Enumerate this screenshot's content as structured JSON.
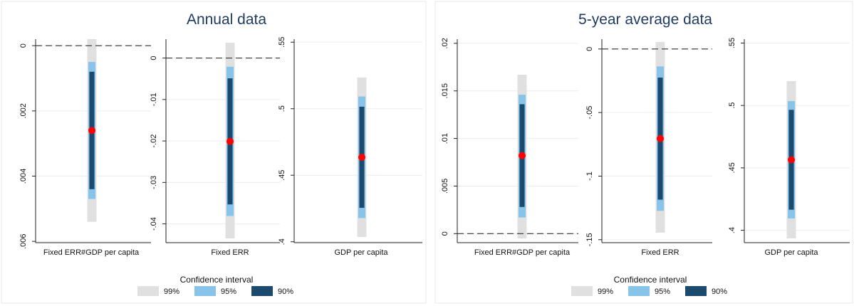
{
  "colors": {
    "ci99": "#e0e0e0",
    "ci95": "#88c4ea",
    "ci90": "#1b4a6e",
    "point": "#ff0000",
    "title": "#1f3a5f"
  },
  "legend": {
    "title": "Confidence interval",
    "items": [
      {
        "label": "99%",
        "color": "#e0e0e0"
      },
      {
        "label": "95%",
        "color": "#88c4ea"
      },
      {
        "label": "90%",
        "color": "#1b4a6e"
      }
    ]
  },
  "chart_data": [
    {
      "type": "coefficient-plot",
      "title": "Annual data",
      "subplots": [
        {
          "xlabel": "Fixed ERR#GDP per capita",
          "ylim": [
            -0.0002,
            0.0058
          ],
          "yticks": [
            0,
            0.002,
            0.004,
            0.006
          ],
          "ytick_labels": [
            "0",
            ".002",
            ".004",
            ".006"
          ],
          "zero_line": true,
          "estimate": 0.0026,
          "ci99": [
            -0.0002,
            0.0054
          ],
          "ci95": [
            0.0005,
            0.0047
          ],
          "ci90": [
            0.0008,
            0.0044
          ]
        },
        {
          "xlabel": "Fixed ERR",
          "ylim": [
            -0.0435,
            0.0037
          ],
          "yticks": [
            0,
            -0.01,
            -0.02,
            -0.03,
            -0.04
          ],
          "ytick_labels": [
            "0",
            "-.01",
            "-.02",
            "-.03",
            "-.04"
          ],
          "zero_line": true,
          "estimate": -0.0201,
          "ci99": [
            -0.0435,
            0.0037
          ],
          "ci95": [
            -0.0381,
            -0.0021
          ],
          "ci90": [
            -0.0353,
            -0.0049
          ]
        },
        {
          "xlabel": "GDP per capita",
          "ylim": [
            0.4036,
            0.5234
          ],
          "yticks": [
            0.4,
            0.45,
            0.5,
            0.55
          ],
          "ytick_labels": [
            ".4",
            ".45",
            ".5",
            ".55"
          ],
          "zero_line": false,
          "estimate": 0.4635,
          "ci99": [
            0.4036,
            0.5234
          ],
          "ci95": [
            0.4178,
            0.5092
          ],
          "ci90": [
            0.4255,
            0.5015
          ]
        }
      ]
    },
    {
      "type": "coefficient-plot",
      "title": "5-year average data",
      "subplots": [
        {
          "xlabel": "Fixed ERR#GDP per capita",
          "ylim": [
            -0.0005,
            0.0167
          ],
          "yticks": [
            0,
            0.005,
            0.01,
            0.015,
            0.02
          ],
          "ytick_labels": [
            "0",
            ".005",
            ".01",
            ".015",
            ".02"
          ],
          "zero_line": true,
          "estimate": 0.0082,
          "ci99": [
            -0.0005,
            0.0167
          ],
          "ci95": [
            0.0017,
            0.0146
          ],
          "ci90": [
            0.0028,
            0.0136
          ]
        },
        {
          "xlabel": "Fixed ERR",
          "ylim": [
            -0.1445,
            0.0055
          ],
          "yticks": [
            0,
            -0.05,
            -0.1,
            -0.15
          ],
          "ytick_labels": [
            "0",
            "-.05",
            "-.1",
            "-.15"
          ],
          "zero_line": true,
          "estimate": -0.0705,
          "ci99": [
            -0.1445,
            0.0055
          ],
          "ci95": [
            -0.1273,
            -0.0137
          ],
          "ci90": [
            -0.1185,
            -0.0225
          ]
        },
        {
          "xlabel": "GDP per capita",
          "ylim": [
            0.3935,
            0.5195
          ],
          "yticks": [
            0.4,
            0.45,
            0.5,
            0.55
          ],
          "ytick_labels": [
            ".4",
            ".45",
            ".5",
            ".55"
          ],
          "zero_line": false,
          "estimate": 0.4565,
          "ci99": [
            0.3935,
            0.5195
          ],
          "ci95": [
            0.4095,
            0.5035
          ],
          "ci90": [
            0.4165,
            0.4965
          ]
        }
      ]
    }
  ]
}
